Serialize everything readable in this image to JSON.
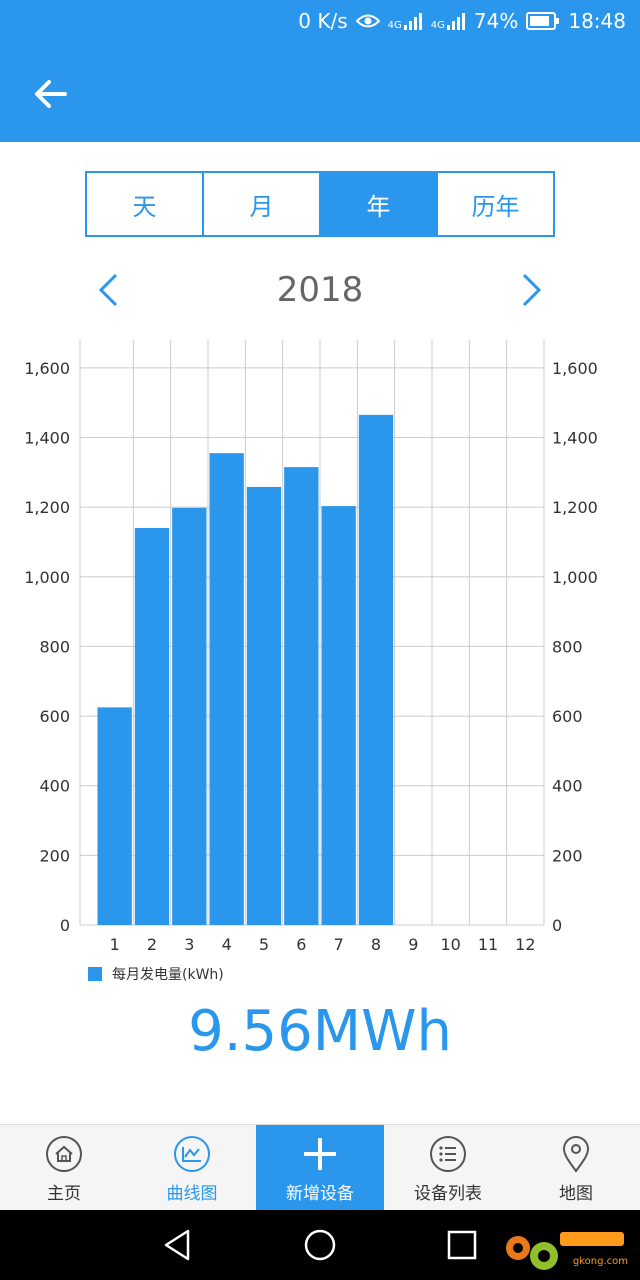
{
  "status_bar": {
    "network_speed": "0 K/s",
    "signal1_label": "4G",
    "signal2_label": "4G",
    "battery": "74%",
    "time": "18:48"
  },
  "tabs": [
    {
      "label": "天",
      "active": false
    },
    {
      "label": "月",
      "active": false
    },
    {
      "label": "年",
      "active": true
    },
    {
      "label": "历年",
      "active": false
    }
  ],
  "year_nav": {
    "year": "2018"
  },
  "chart_data": {
    "type": "bar",
    "categories": [
      "1",
      "2",
      "3",
      "4",
      "5",
      "6",
      "7",
      "8",
      "9",
      "10",
      "11",
      "12"
    ],
    "series": [
      {
        "name": "每月发电量(kWh)",
        "values": [
          625,
          1140,
          1198,
          1355,
          1258,
          1315,
          1203,
          1465,
          null,
          null,
          null,
          null
        ]
      }
    ],
    "ylim": [
      0,
      1680
    ],
    "yticks": [
      0,
      200,
      400,
      600,
      800,
      1000,
      1200,
      1400,
      1600
    ],
    "ytick_labels": [
      "0",
      "200",
      "400",
      "600",
      "800",
      "1,000",
      "1,200",
      "1,400",
      "1,600"
    ],
    "grid": true,
    "legend_position": "bottom-left",
    "bar_color": "#2a96ec"
  },
  "total": "9.56MWh",
  "bottom_nav": [
    {
      "label": "主页",
      "icon": "home-icon"
    },
    {
      "label": "曲线图",
      "icon": "chart-icon"
    },
    {
      "label": "新增设备",
      "icon": "plus-icon"
    },
    {
      "label": "设备列表",
      "icon": "list-icon"
    },
    {
      "label": "地图",
      "icon": "location-pin-icon"
    }
  ],
  "watermark": {
    "text": "gkong.com"
  },
  "colors": {
    "accent": "#2a96ec"
  }
}
